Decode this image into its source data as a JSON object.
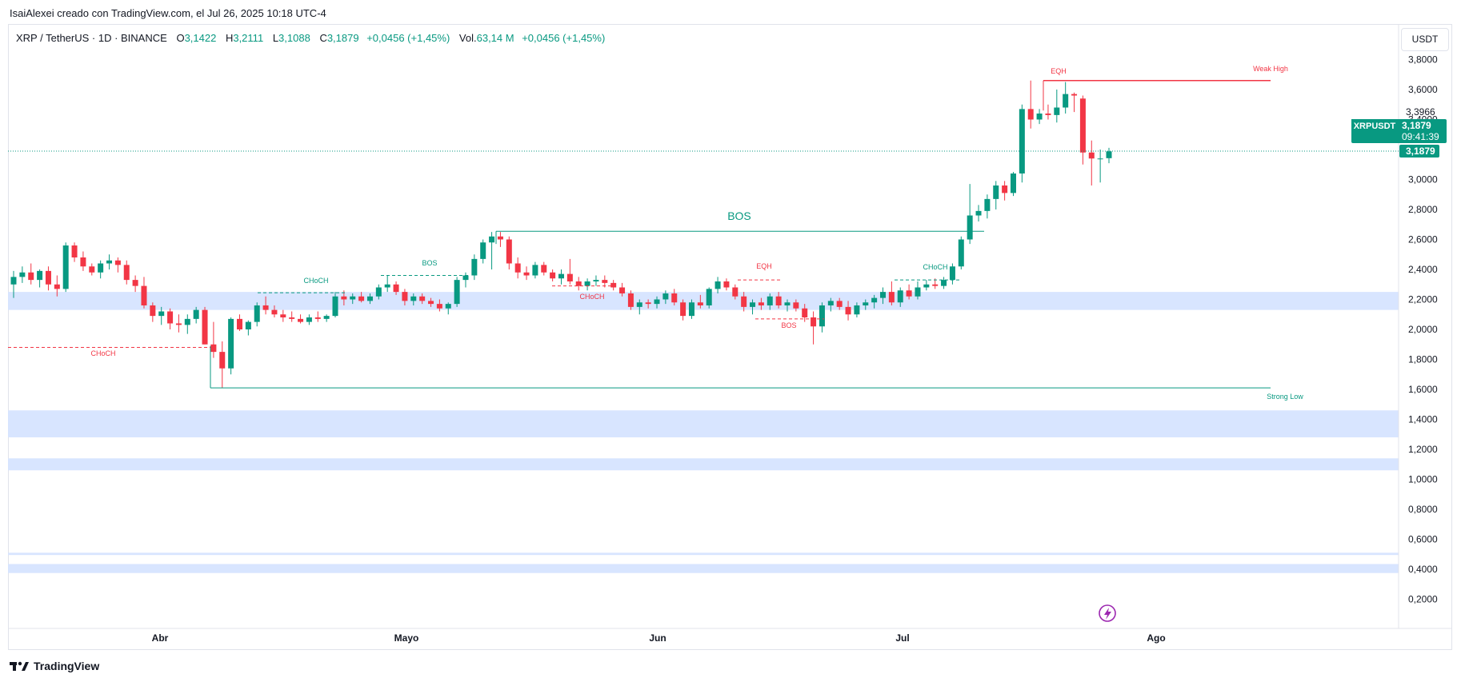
{
  "caption": "IsaiAlexei creado con TradingView.com, el Jul 26, 2025 10:18 UTC-4",
  "legend": {
    "symbol": "XRP / TetherUS · 1D · BINANCE",
    "o_label": "O",
    "o_value": "3,1422",
    "h_label": "H",
    "h_value": "3,2111",
    "l_label": "L",
    "l_value": "3,1088",
    "c_label": "C",
    "c_value": "3,1879",
    "change": "+0,0456 (+1,45%)",
    "vol_label": "Vol.",
    "vol_value": "63,14 M",
    "vol_change": "+0,0456 (+1,45%)"
  },
  "unit_button": "USDT",
  "price_tag": {
    "ticker": "XRPUSDT",
    "price": "3,1879",
    "countdown": "09:41:39",
    "axis_price": "3,1879",
    "axis_marker": "3,3966"
  },
  "footer": {
    "brand": "TradingView"
  },
  "colors": {
    "up": "#089981",
    "down": "#f23645",
    "zone": "#d6e4ff",
    "accent": "#9c27b0"
  },
  "chart_data": {
    "type": "candlestick",
    "title": "XRP / TetherUS · 1D · BINANCE",
    "ylim": [
      0.0,
      3.9
    ],
    "y_ticks": [
      "3,8000",
      "3,6000",
      "3,4000",
      "3,2000",
      "3,0000",
      "2,8000",
      "2,6000",
      "2,4000",
      "2,2000",
      "2,0000",
      "1,8000",
      "1,6000",
      "1,4000",
      "1,2000",
      "1,0000",
      "0,8000",
      "0,6000",
      "0,4000",
      "0,2000"
    ],
    "x_ticks": [
      "Abr",
      "Mayo",
      "Jun",
      "Jul",
      "Ago"
    ],
    "candles": [
      [
        2.3,
        2.39,
        2.21,
        2.35
      ],
      [
        2.35,
        2.42,
        2.31,
        2.38
      ],
      [
        2.38,
        2.44,
        2.3,
        2.33
      ],
      [
        2.33,
        2.4,
        2.28,
        2.39
      ],
      [
        2.39,
        2.42,
        2.26,
        2.3
      ],
      [
        2.3,
        2.36,
        2.22,
        2.27
      ],
      [
        2.27,
        2.58,
        2.25,
        2.56
      ],
      [
        2.56,
        2.58,
        2.45,
        2.48
      ],
      [
        2.48,
        2.52,
        2.39,
        2.42
      ],
      [
        2.42,
        2.44,
        2.36,
        2.38
      ],
      [
        2.38,
        2.46,
        2.34,
        2.44
      ],
      [
        2.44,
        2.5,
        2.4,
        2.46
      ],
      [
        2.46,
        2.48,
        2.38,
        2.43
      ],
      [
        2.43,
        2.46,
        2.3,
        2.33
      ],
      [
        2.33,
        2.36,
        2.25,
        2.29
      ],
      [
        2.29,
        2.35,
        2.14,
        2.16
      ],
      [
        2.16,
        2.18,
        2.05,
        2.09
      ],
      [
        2.09,
        2.15,
        2.03,
        2.12
      ],
      [
        2.12,
        2.14,
        2.0,
        2.04
      ],
      [
        2.04,
        2.1,
        1.98,
        2.03
      ],
      [
        2.03,
        2.1,
        1.97,
        2.07
      ],
      [
        2.07,
        2.15,
        2.04,
        2.13
      ],
      [
        2.13,
        2.15,
        1.9,
        1.9
      ],
      [
        1.9,
        2.05,
        1.81,
        1.85
      ],
      [
        1.85,
        1.92,
        1.61,
        1.74
      ],
      [
        1.74,
        2.08,
        1.7,
        2.07
      ],
      [
        2.07,
        2.1,
        1.99,
        2.0
      ],
      [
        2.0,
        2.06,
        1.96,
        2.05
      ],
      [
        2.05,
        2.18,
        2.02,
        2.16
      ],
      [
        2.16,
        2.22,
        2.1,
        2.13
      ],
      [
        2.13,
        2.16,
        2.08,
        2.1
      ],
      [
        2.1,
        2.13,
        2.05,
        2.08
      ],
      [
        2.08,
        2.12,
        2.05,
        2.07
      ],
      [
        2.07,
        2.1,
        2.04,
        2.05
      ],
      [
        2.05,
        2.1,
        2.03,
        2.08
      ],
      [
        2.08,
        2.12,
        2.05,
        2.07
      ],
      [
        2.07,
        2.1,
        2.05,
        2.09
      ],
      [
        2.09,
        2.25,
        2.08,
        2.22
      ],
      [
        2.22,
        2.26,
        2.16,
        2.2
      ],
      [
        2.2,
        2.24,
        2.17,
        2.22
      ],
      [
        2.22,
        2.25,
        2.18,
        2.19
      ],
      [
        2.19,
        2.24,
        2.17,
        2.22
      ],
      [
        2.22,
        2.3,
        2.2,
        2.28
      ],
      [
        2.28,
        2.36,
        2.25,
        2.3
      ],
      [
        2.3,
        2.32,
        2.23,
        2.25
      ],
      [
        2.25,
        2.27,
        2.16,
        2.19
      ],
      [
        2.19,
        2.24,
        2.16,
        2.22
      ],
      [
        2.22,
        2.24,
        2.17,
        2.19
      ],
      [
        2.19,
        2.21,
        2.15,
        2.17
      ],
      [
        2.17,
        2.2,
        2.12,
        2.14
      ],
      [
        2.14,
        2.18,
        2.1,
        2.17
      ],
      [
        2.17,
        2.35,
        2.15,
        2.33
      ],
      [
        2.33,
        2.38,
        2.28,
        2.36
      ],
      [
        2.36,
        2.5,
        2.33,
        2.47
      ],
      [
        2.47,
        2.6,
        2.44,
        2.58
      ],
      [
        2.58,
        2.65,
        2.4,
        2.62
      ],
      [
        2.62,
        2.65,
        2.55,
        2.6
      ],
      [
        2.6,
        2.62,
        2.4,
        2.44
      ],
      [
        2.44,
        2.48,
        2.34,
        2.38
      ],
      [
        2.38,
        2.42,
        2.33,
        2.36
      ],
      [
        2.36,
        2.45,
        2.34,
        2.43
      ],
      [
        2.43,
        2.45,
        2.36,
        2.38
      ],
      [
        2.38,
        2.4,
        2.32,
        2.34
      ],
      [
        2.34,
        2.4,
        2.3,
        2.37
      ],
      [
        2.37,
        2.47,
        2.3,
        2.32
      ],
      [
        2.32,
        2.35,
        2.26,
        2.29
      ],
      [
        2.29,
        2.34,
        2.26,
        2.32
      ],
      [
        2.32,
        2.36,
        2.29,
        2.33
      ],
      [
        2.33,
        2.36,
        2.28,
        2.31
      ],
      [
        2.31,
        2.33,
        2.26,
        2.28
      ],
      [
        2.28,
        2.31,
        2.22,
        2.24
      ],
      [
        2.24,
        2.26,
        2.13,
        2.15
      ],
      [
        2.15,
        2.2,
        2.1,
        2.18
      ],
      [
        2.18,
        2.2,
        2.14,
        2.17
      ],
      [
        2.17,
        2.22,
        2.14,
        2.2
      ],
      [
        2.2,
        2.26,
        2.17,
        2.24
      ],
      [
        2.24,
        2.27,
        2.16,
        2.18
      ],
      [
        2.18,
        2.2,
        2.06,
        2.09
      ],
      [
        2.09,
        2.2,
        2.07,
        2.18
      ],
      [
        2.18,
        2.23,
        2.14,
        2.16
      ],
      [
        2.16,
        2.28,
        2.14,
        2.27
      ],
      [
        2.27,
        2.35,
        2.24,
        2.32
      ],
      [
        2.32,
        2.34,
        2.26,
        2.28
      ],
      [
        2.28,
        2.3,
        2.2,
        2.22
      ],
      [
        2.22,
        2.25,
        2.12,
        2.15
      ],
      [
        2.15,
        2.2,
        2.1,
        2.18
      ],
      [
        2.18,
        2.21,
        2.13,
        2.16
      ],
      [
        2.16,
        2.24,
        2.13,
        2.22
      ],
      [
        2.22,
        2.25,
        2.14,
        2.16
      ],
      [
        2.16,
        2.2,
        2.12,
        2.18
      ],
      [
        2.18,
        2.2,
        2.12,
        2.14
      ],
      [
        2.14,
        2.17,
        2.05,
        2.08
      ],
      [
        2.08,
        2.12,
        1.9,
        2.02
      ],
      [
        2.02,
        2.18,
        1.98,
        2.16
      ],
      [
        2.16,
        2.21,
        2.12,
        2.19
      ],
      [
        2.19,
        2.21,
        2.13,
        2.15
      ],
      [
        2.15,
        2.19,
        2.06,
        2.1
      ],
      [
        2.1,
        2.18,
        2.08,
        2.16
      ],
      [
        2.16,
        2.2,
        2.13,
        2.18
      ],
      [
        2.18,
        2.23,
        2.14,
        2.21
      ],
      [
        2.21,
        2.28,
        2.17,
        2.25
      ],
      [
        2.25,
        2.32,
        2.16,
        2.18
      ],
      [
        2.18,
        2.28,
        2.15,
        2.26
      ],
      [
        2.26,
        2.3,
        2.2,
        2.22
      ],
      [
        2.22,
        2.32,
        2.2,
        2.28
      ],
      [
        2.28,
        2.33,
        2.26,
        2.3
      ],
      [
        2.3,
        2.34,
        2.27,
        2.29
      ],
      [
        2.29,
        2.35,
        2.27,
        2.33
      ],
      [
        2.33,
        2.44,
        2.3,
        2.42
      ],
      [
        2.42,
        2.62,
        2.4,
        2.6
      ],
      [
        2.6,
        2.97,
        2.57,
        2.76
      ],
      [
        2.76,
        2.83,
        2.72,
        2.79
      ],
      [
        2.79,
        2.9,
        2.74,
        2.87
      ],
      [
        2.87,
        2.99,
        2.8,
        2.96
      ],
      [
        2.96,
        2.99,
        2.86,
        2.91
      ],
      [
        2.91,
        3.05,
        2.89,
        3.04
      ],
      [
        3.04,
        3.5,
        2.98,
        3.47
      ],
      [
        3.47,
        3.66,
        3.34,
        3.4
      ],
      [
        3.4,
        3.47,
        3.37,
        3.44
      ],
      [
        3.44,
        3.5,
        3.4,
        3.43
      ],
      [
        3.43,
        3.6,
        3.38,
        3.48
      ],
      [
        3.48,
        3.65,
        3.44,
        3.57
      ],
      [
        3.57,
        3.58,
        3.45,
        3.56
      ],
      [
        3.54,
        3.56,
        3.1,
        3.18
      ],
      [
        3.18,
        3.26,
        2.96,
        3.14
      ],
      [
        3.14,
        3.2,
        2.98,
        3.14
      ],
      [
        3.1422,
        3.2111,
        3.1088,
        3.1879
      ]
    ],
    "annotations": [
      {
        "text": "BOS",
        "color": "#089981"
      },
      {
        "text": "EQH",
        "color": "#f23645"
      },
      {
        "text": "Weak High",
        "color": "#f23645"
      },
      {
        "text": "Strong Low",
        "color": "#089981"
      },
      {
        "text": "CHoCH",
        "color": "#f23645"
      },
      {
        "text": "CHoCH",
        "color": "#089981"
      },
      {
        "text": "BOS",
        "color": "#089981"
      },
      {
        "text": "CHoCH",
        "color": "#f23645"
      },
      {
        "text": "EQH",
        "color": "#f23645"
      },
      {
        "text": "BOS",
        "color": "#f23645"
      },
      {
        "text": "CHoCH",
        "color": "#089981"
      }
    ],
    "levels": {
      "bos_major": 2.655,
      "weak_high": 3.66,
      "strong_low": 1.61,
      "choch_low": 1.88
    },
    "demand_zones": [
      [
        2.13,
        2.25
      ],
      [
        1.28,
        1.46
      ],
      [
        1.06,
        1.14
      ],
      [
        0.495,
        0.51
      ],
      [
        0.375,
        0.435
      ]
    ]
  }
}
